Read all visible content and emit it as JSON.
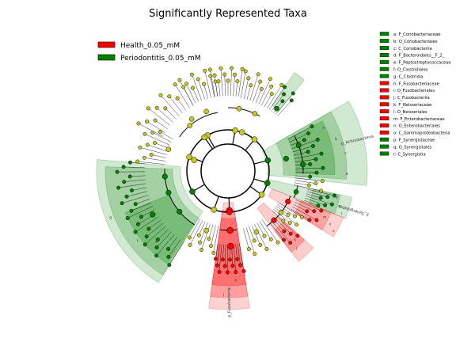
{
  "title": "Significantly Represented Taxa",
  "colors": {
    "health": "#ff0000",
    "periodontitis": "#008000",
    "neutral": "#c8c81e",
    "edge": "#000000"
  },
  "legend": [
    {
      "label": "Health_0.05_mM",
      "group": "health"
    },
    {
      "label": "Periodontitis_0.05_mM",
      "group": "periodontitis"
    }
  ],
  "taxa_key": [
    {
      "text": "a: F_Coriobacteriaceae",
      "group": "periodontitis"
    },
    {
      "text": "b: O_Coriobacteriales",
      "group": "periodontitis"
    },
    {
      "text": "c: C_Coriobacteriia",
      "group": "periodontitis"
    },
    {
      "text": "d: F_Bacteroidales__F_2_",
      "group": "periodontitis"
    },
    {
      "text": "e: F_Peptostreptococcaceae",
      "group": "periodontitis"
    },
    {
      "text": "f: O_Clostridiales",
      "group": "periodontitis"
    },
    {
      "text": "g: C_Clostridia",
      "group": "periodontitis"
    },
    {
      "text": "h: F_Fusobacteriaceae",
      "group": "health"
    },
    {
      "text": "i: O_Fusobacteriales",
      "group": "health"
    },
    {
      "text": "j: C_Fusobacteriia",
      "group": "health"
    },
    {
      "text": "k: F_Neisseriaceae",
      "group": "health"
    },
    {
      "text": "l: O_Neisseriales",
      "group": "health"
    },
    {
      "text": "m: F_Enterobacteriaceae",
      "group": "health"
    },
    {
      "text": "n: O_Enterobacteriales",
      "group": "health"
    },
    {
      "text": "o: C_Gammaproteobacteria",
      "group": "health"
    },
    {
      "text": "p: F_Synergistaceae",
      "group": "periodontitis"
    },
    {
      "text": "q: O_Synergistales",
      "group": "periodontitis"
    },
    {
      "text": "r: C_Synergistia",
      "group": "periodontitis"
    }
  ],
  "clade_labels": [
    {
      "text": "p_Actinobacteria",
      "group": "periodontitis"
    },
    {
      "text": "p_Synergistetes",
      "group": "periodontitis"
    },
    {
      "text": "p_Fusobacteria",
      "group": "health"
    }
  ]
}
